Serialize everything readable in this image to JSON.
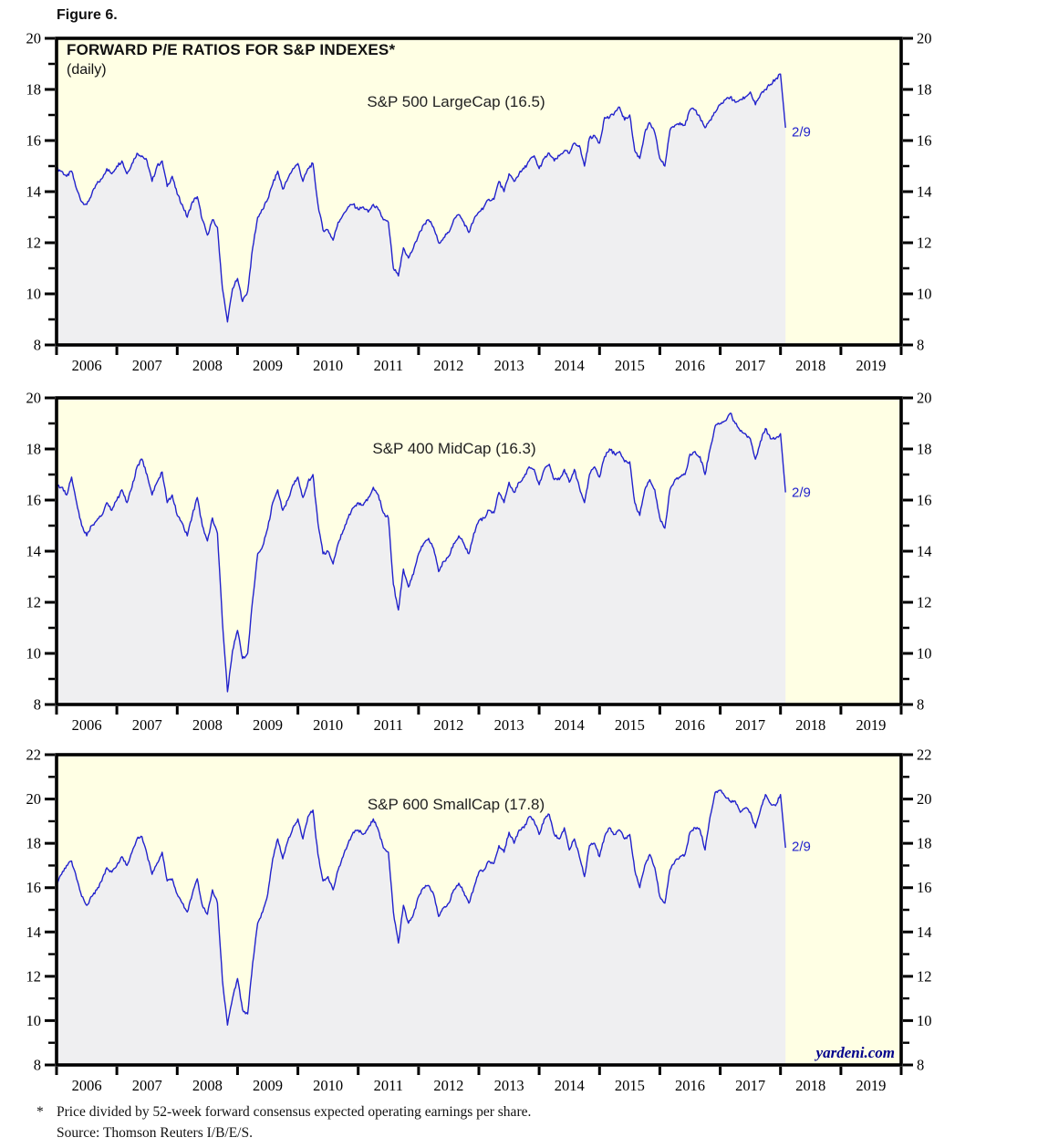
{
  "figure_label": "Figure 6.",
  "title": "FORWARD P/E RATIOS FOR S&P INDEXES*",
  "subtitle": "(daily)",
  "watermark": "yardeni.com",
  "footnote": {
    "marker": "*",
    "line1": "Price divided by 52-week forward consensus expected operating earnings per share.",
    "line2": "Source: Thomson Reuters I/B/E/S."
  },
  "colors": {
    "line": "#2222cc",
    "fill": "#efeff1",
    "plot_bg": "#ffffe4",
    "frame": "#000000",
    "tick_label": "#000000",
    "annotation": "#2222cc",
    "watermark": "#00008b",
    "page_bg": "#ffffff"
  },
  "x_axis": {
    "start_year": 2006,
    "end_year": 2020,
    "tick_years": [
      2006,
      2007,
      2008,
      2009,
      2010,
      2011,
      2012,
      2013,
      2014,
      2015,
      2016,
      2017,
      2018,
      2019,
      2020
    ],
    "labels": [
      "2006",
      "2007",
      "2008",
      "2009",
      "2010",
      "2011",
      "2012",
      "2013",
      "2014",
      "2015",
      "2016",
      "2017",
      "2018",
      "2019"
    ]
  },
  "chart_data": [
    {
      "type": "line",
      "title": "S&P 500 LargeCap (16.5)",
      "end_label": "2/9",
      "latest_value": 16.5,
      "ylim": [
        8,
        20
      ],
      "yticks": [
        8,
        10,
        12,
        14,
        16,
        18,
        20
      ],
      "minor_step": 1,
      "x_start": 2006.0,
      "x_step_months": 1,
      "last_date": "2018-02-09",
      "values": [
        14.9,
        14.8,
        14.6,
        14.8,
        14.1,
        13.6,
        13.5,
        13.9,
        14.3,
        14.5,
        14.9,
        14.7,
        15.0,
        15.2,
        14.7,
        15.1,
        15.5,
        15.4,
        15.2,
        14.4,
        15.0,
        15.2,
        14.2,
        14.6,
        13.9,
        13.5,
        13.0,
        13.6,
        13.8,
        12.9,
        12.3,
        12.9,
        12.6,
        10.2,
        8.9,
        10.2,
        10.6,
        9.7,
        10.1,
        11.8,
        13.0,
        13.3,
        13.7,
        14.3,
        14.8,
        14.1,
        14.5,
        14.9,
        15.1,
        14.4,
        14.9,
        15.1,
        13.5,
        12.5,
        12.5,
        12.1,
        12.8,
        13.1,
        13.4,
        13.5,
        13.3,
        13.4,
        13.2,
        13.5,
        13.3,
        12.9,
        12.8,
        11.0,
        10.7,
        11.8,
        11.4,
        11.8,
        12.3,
        12.7,
        12.9,
        12.6,
        12.0,
        12.2,
        12.4,
        12.9,
        13.1,
        12.8,
        12.4,
        12.9,
        13.2,
        13.4,
        13.7,
        13.7,
        14.4,
        14.0,
        14.7,
        14.4,
        14.7,
        14.9,
        15.2,
        15.4,
        14.9,
        15.3,
        15.5,
        15.2,
        15.4,
        15.6,
        15.5,
        15.9,
        15.8,
        15.0,
        16.1,
        16.2,
        15.9,
        16.9,
        16.9,
        17.1,
        17.3,
        16.8,
        17.0,
        15.6,
        15.3,
        16.3,
        16.7,
        16.3,
        15.3,
        15.0,
        16.4,
        16.6,
        16.7,
        16.6,
        17.2,
        17.2,
        16.9,
        16.5,
        16.8,
        17.1,
        17.4,
        17.6,
        17.7,
        17.5,
        17.6,
        17.7,
        17.9,
        17.4,
        17.8,
        18.0,
        18.2,
        18.4,
        18.6,
        16.5
      ]
    },
    {
      "type": "line",
      "title": "S&P 400 MidCap (16.3)",
      "end_label": "2/9",
      "latest_value": 16.3,
      "ylim": [
        8,
        20
      ],
      "yticks": [
        8,
        10,
        12,
        14,
        16,
        18,
        20
      ],
      "minor_step": 1,
      "x_start": 2006.0,
      "x_step_months": 1,
      "last_date": "2018-02-09",
      "values": [
        16.6,
        16.5,
        16.2,
        16.9,
        15.9,
        15.0,
        14.6,
        15.0,
        15.2,
        15.4,
        15.9,
        15.6,
        16.0,
        16.4,
        15.9,
        16.5,
        17.3,
        17.6,
        17.0,
        16.2,
        16.7,
        17.1,
        15.9,
        16.2,
        15.4,
        15.1,
        14.6,
        15.4,
        16.1,
        15.0,
        14.4,
        15.3,
        14.7,
        11.2,
        8.5,
        10.1,
        10.9,
        9.8,
        10.0,
        12.1,
        13.9,
        14.2,
        14.9,
        15.9,
        16.4,
        15.6,
        16.0,
        16.6,
        16.9,
        16.1,
        16.7,
        17.0,
        15.1,
        13.9,
        14.0,
        13.5,
        14.3,
        14.8,
        15.3,
        15.7,
        15.9,
        15.8,
        16.1,
        16.5,
        16.2,
        15.5,
        15.3,
        12.7,
        11.7,
        13.3,
        12.6,
        13.1,
        13.9,
        14.3,
        14.5,
        14.1,
        13.2,
        13.6,
        13.8,
        14.3,
        14.6,
        14.3,
        13.9,
        14.7,
        15.2,
        15.3,
        15.6,
        15.5,
        16.3,
        15.9,
        16.7,
        16.3,
        16.7,
        16.9,
        17.3,
        17.2,
        16.6,
        17.2,
        17.4,
        16.8,
        16.8,
        17.2,
        16.7,
        17.2,
        16.5,
        15.9,
        17.0,
        17.3,
        16.9,
        17.7,
        18.0,
        17.8,
        17.9,
        17.5,
        17.5,
        15.9,
        15.4,
        16.4,
        16.8,
        16.4,
        15.3,
        14.9,
        16.4,
        16.8,
        16.9,
        17.0,
        17.8,
        17.9,
        17.7,
        17.0,
        18.0,
        18.9,
        19.0,
        19.1,
        19.4,
        19.0,
        18.7,
        18.6,
        18.4,
        17.6,
        18.3,
        18.8,
        18.4,
        18.4,
        18.6,
        16.3
      ]
    },
    {
      "type": "line",
      "title": "S&P 600 SmallCap (17.8)",
      "end_label": "2/9",
      "latest_value": 17.8,
      "ylim": [
        8,
        22
      ],
      "yticks": [
        8,
        10,
        12,
        14,
        16,
        18,
        20,
        22
      ],
      "minor_step": 1,
      "x_start": 2006.0,
      "x_step_months": 1,
      "last_date": "2018-02-09",
      "values": [
        16.2,
        16.6,
        17.0,
        17.2,
        16.4,
        15.6,
        15.2,
        15.6,
        15.9,
        16.3,
        16.9,
        16.7,
        17.0,
        17.4,
        17.0,
        17.6,
        18.2,
        18.3,
        17.5,
        16.6,
        17.1,
        17.6,
        16.3,
        16.4,
        15.7,
        15.3,
        14.9,
        15.7,
        16.4,
        15.2,
        14.8,
        15.9,
        15.3,
        11.8,
        9.8,
        11.0,
        11.9,
        10.5,
        10.3,
        12.6,
        14.4,
        14.9,
        15.7,
        17.3,
        18.2,
        17.3,
        18.1,
        18.7,
        19.1,
        18.2,
        19.2,
        19.5,
        17.5,
        16.3,
        16.5,
        15.9,
        16.8,
        17.4,
        18.0,
        18.5,
        18.6,
        18.4,
        18.7,
        19.1,
        18.6,
        17.8,
        17.6,
        14.9,
        13.5,
        15.2,
        14.4,
        14.8,
        15.6,
        16.0,
        16.1,
        15.7,
        14.7,
        15.1,
        15.3,
        15.9,
        16.2,
        15.8,
        15.3,
        16.0,
        16.7,
        16.8,
        17.2,
        17.1,
        17.9,
        17.6,
        18.5,
        18.0,
        18.6,
        18.7,
        19.2,
        19.0,
        18.4,
        19.1,
        19.3,
        18.4,
        18.2,
        18.7,
        17.7,
        18.2,
        17.4,
        16.5,
        17.9,
        18.0,
        17.4,
        18.3,
        18.7,
        18.4,
        18.6,
        18.2,
        18.4,
        16.8,
        16.0,
        17.0,
        17.5,
        16.9,
        15.6,
        15.3,
        16.8,
        17.2,
        17.4,
        17.5,
        18.5,
        18.7,
        18.6,
        17.7,
        19.2,
        20.3,
        20.4,
        20.1,
        19.9,
        19.9,
        19.4,
        19.6,
        19.4,
        18.7,
        19.5,
        20.2,
        19.8,
        19.7,
        20.2,
        17.8
      ]
    }
  ]
}
